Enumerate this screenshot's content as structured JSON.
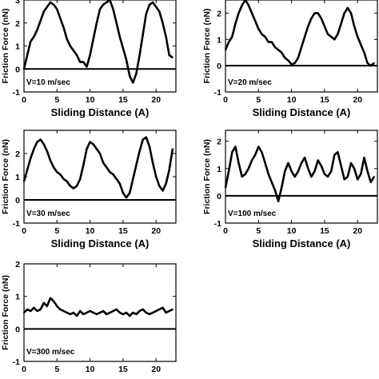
{
  "chart_data": [
    {
      "type": "line",
      "xlabel": "Sliding Distance (A)",
      "ylabel": "Friction Force (nN)",
      "annotation": "V=10 m/sec",
      "xlim": [
        0,
        23
      ],
      "ylim": [
        -1,
        3
      ],
      "xticks": [
        0,
        5,
        10,
        15,
        20
      ],
      "yticks": [
        -1,
        0,
        1,
        2,
        3
      ],
      "zero_line": true,
      "x": [
        0,
        0.5,
        1,
        1.5,
        2,
        2.5,
        3,
        3.5,
        4,
        4.5,
        5,
        5.5,
        6,
        6.5,
        7,
        7.5,
        8,
        8.5,
        9,
        9.5,
        10,
        10.5,
        11,
        11.5,
        12,
        12.5,
        13,
        13.5,
        14,
        14.5,
        15,
        15.5,
        16,
        16.5,
        17,
        17.5,
        18,
        18.5,
        19,
        19.5,
        20,
        20.5,
        21,
        21.5,
        22,
        22.5
      ],
      "y": [
        0.0,
        0.6,
        1.2,
        1.4,
        1.7,
        2.1,
        2.5,
        2.7,
        2.9,
        2.8,
        2.6,
        2.2,
        1.8,
        1.3,
        1.0,
        0.8,
        0.6,
        0.3,
        0.3,
        0.1,
        0.6,
        1.3,
        2.0,
        2.6,
        2.8,
        2.9,
        3.0,
        2.6,
        2.0,
        1.4,
        0.9,
        0.4,
        -0.3,
        -0.6,
        -0.2,
        0.6,
        1.5,
        2.4,
        2.8,
        2.9,
        2.7,
        2.5,
        2.0,
        1.4,
        0.6,
        0.5
      ]
    },
    {
      "type": "line",
      "xlabel": "Sliding Distance (A)",
      "ylabel": "Friction Force (nN)",
      "annotation": "V=20 m/sec",
      "xlim": [
        0,
        23
      ],
      "ylim": [
        -1,
        2.5
      ],
      "xticks": [
        0,
        5,
        10,
        15,
        20
      ],
      "yticks": [
        -1,
        0,
        1,
        2
      ],
      "zero_line": true,
      "x": [
        0,
        0.5,
        1,
        1.5,
        2,
        2.5,
        3,
        3.5,
        4,
        4.5,
        5,
        5.5,
        6,
        6.5,
        7,
        7.5,
        8,
        8.5,
        9,
        9.5,
        10,
        10.5,
        11,
        11.5,
        12,
        12.5,
        13,
        13.5,
        14,
        14.5,
        15,
        15.5,
        16,
        16.5,
        17,
        17.5,
        18,
        18.5,
        19,
        19.5,
        20,
        20.5,
        21,
        21.5,
        22,
        22.5
      ],
      "y": [
        0.6,
        0.9,
        1.1,
        1.6,
        2.0,
        2.3,
        2.5,
        2.3,
        2.0,
        1.7,
        1.4,
        1.2,
        1.1,
        0.9,
        0.9,
        0.7,
        0.6,
        0.5,
        0.3,
        0.2,
        0.05,
        0.1,
        0.3,
        0.7,
        1.1,
        1.5,
        1.8,
        2.0,
        2.0,
        1.8,
        1.5,
        1.2,
        1.1,
        1.0,
        1.2,
        1.6,
        2.0,
        2.2,
        2.0,
        1.5,
        1.1,
        0.8,
        0.5,
        0.1,
        0.0,
        0.1
      ]
    },
    {
      "type": "line",
      "xlabel": "Sliding Distance (A)",
      "ylabel": "Friction Force (nN)",
      "annotation": "V=30 m/sec",
      "xlim": [
        0,
        23
      ],
      "ylim": [
        -1,
        3
      ],
      "xticks": [
        0,
        5,
        10,
        15,
        20
      ],
      "yticks": [
        -1,
        0,
        1,
        2
      ],
      "zero_line": true,
      "x": [
        0,
        0.5,
        1,
        1.5,
        2,
        2.5,
        3,
        3.5,
        4,
        4.5,
        5,
        5.5,
        6,
        6.5,
        7,
        7.5,
        8,
        8.5,
        9,
        9.5,
        10,
        10.5,
        11,
        11.5,
        12,
        12.5,
        13,
        13.5,
        14,
        14.5,
        15,
        15.5,
        16,
        16.5,
        17,
        17.5,
        18,
        18.5,
        19,
        19.5,
        20,
        20.5,
        21,
        21.5,
        22,
        22.5
      ],
      "y": [
        0.8,
        1.3,
        1.8,
        2.2,
        2.5,
        2.6,
        2.4,
        2.1,
        1.7,
        1.4,
        1.2,
        1.1,
        0.9,
        0.8,
        0.6,
        0.5,
        0.6,
        0.9,
        1.5,
        2.2,
        2.5,
        2.4,
        2.2,
        2.0,
        1.6,
        1.4,
        1.2,
        1.1,
        0.9,
        0.7,
        0.3,
        0.1,
        0.3,
        0.9,
        1.5,
        2.1,
        2.6,
        2.7,
        2.3,
        1.6,
        1.0,
        0.6,
        0.4,
        0.7,
        1.3,
        2.2
      ]
    },
    {
      "type": "line",
      "xlabel": "Sliding Distance (A)",
      "ylabel": "Friction Force (nN)",
      "annotation": "V=100 m/sec",
      "xlim": [
        0,
        23
      ],
      "ylim": [
        -1,
        2.4
      ],
      "xticks": [
        0,
        5,
        10,
        15,
        20
      ],
      "yticks": [
        -1,
        0,
        1,
        2
      ],
      "zero_line": true,
      "x": [
        0,
        0.5,
        1,
        1.5,
        2,
        2.5,
        3,
        3.5,
        4,
        4.5,
        5,
        5.5,
        6,
        6.5,
        7,
        7.5,
        8,
        8.5,
        9,
        9.5,
        10,
        10.5,
        11,
        11.5,
        12,
        12.5,
        13,
        13.5,
        14,
        14.5,
        15,
        15.5,
        16,
        16.5,
        17,
        17.5,
        18,
        18.5,
        19,
        19.5,
        20,
        20.5,
        21,
        21.5,
        22,
        22.5
      ],
      "y": [
        0.3,
        0.9,
        1.6,
        1.8,
        1.2,
        0.7,
        0.8,
        1.0,
        1.3,
        1.5,
        1.8,
        1.6,
        1.2,
        0.8,
        0.5,
        0.2,
        -0.2,
        0.3,
        0.9,
        1.2,
        0.9,
        0.7,
        0.9,
        1.2,
        1.4,
        1.0,
        0.7,
        0.9,
        1.3,
        1.1,
        0.8,
        0.7,
        0.9,
        1.5,
        1.6,
        1.1,
        0.6,
        0.7,
        1.2,
        1.0,
        0.6,
        0.8,
        1.4,
        0.9,
        0.5,
        0.7
      ]
    },
    {
      "type": "line",
      "ylabel": "Friction Force (nN)",
      "annotation": "V=300 m/sec",
      "xlim": [
        0,
        23
      ],
      "ylim": [
        -1,
        2
      ],
      "xticks": [
        0,
        5,
        10,
        15,
        20
      ],
      "yticks": [
        -1,
        0,
        1,
        2
      ],
      "zero_line": true,
      "x": [
        0,
        0.5,
        1,
        1.5,
        2,
        2.5,
        3,
        3.5,
        4,
        4.5,
        5,
        5.5,
        6,
        6.5,
        7,
        7.5,
        8,
        8.5,
        9,
        9.5,
        10,
        10.5,
        11,
        11.5,
        12,
        12.5,
        13,
        13.5,
        14,
        14.5,
        15,
        15.5,
        16,
        16.5,
        17,
        17.5,
        18,
        18.5,
        19,
        19.5,
        20,
        20.5,
        21,
        21.5,
        22,
        22.5
      ],
      "y": [
        0.5,
        0.6,
        0.55,
        0.65,
        0.55,
        0.6,
        0.8,
        0.7,
        0.95,
        0.85,
        0.7,
        0.6,
        0.55,
        0.5,
        0.45,
        0.5,
        0.4,
        0.55,
        0.45,
        0.5,
        0.55,
        0.5,
        0.45,
        0.5,
        0.55,
        0.45,
        0.5,
        0.55,
        0.6,
        0.5,
        0.45,
        0.5,
        0.4,
        0.5,
        0.45,
        0.55,
        0.6,
        0.5,
        0.45,
        0.5,
        0.55,
        0.6,
        0.65,
        0.5,
        0.55,
        0.6
      ]
    }
  ]
}
